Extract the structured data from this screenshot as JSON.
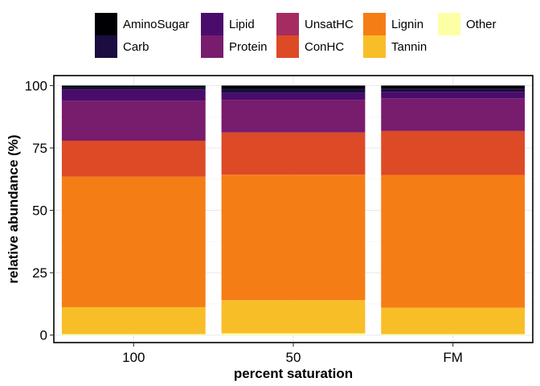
{
  "chart_data": {
    "type": "bar",
    "stacked": true,
    "xlabel": "percent saturation",
    "ylabel": "relative abundance (%)",
    "ylim": [
      -3,
      104
    ],
    "yticks": [
      0,
      25,
      50,
      75,
      100
    ],
    "categories": [
      "100",
      "50",
      "FM"
    ],
    "grid": true,
    "legend_position": "top",
    "legend_columns": 5,
    "series": [
      {
        "name": "AminoSugar",
        "color": "#000004",
        "values": [
          0.8,
          1.3,
          1.2
        ]
      },
      {
        "name": "Carb",
        "color": "#1b0c41",
        "values": [
          0.8,
          1.7,
          1.3
        ]
      },
      {
        "name": "Lipid",
        "color": "#4a0c6b",
        "values": [
          4.5,
          2.7,
          2.6
        ]
      },
      {
        "name": "Protein",
        "color": "#781c6d",
        "values": [
          16.0,
          13.1,
          13.1
        ]
      },
      {
        "name": "UnsatHC",
        "color": "#a52c60",
        "values": [
          0.0,
          0.0,
          0.0
        ]
      },
      {
        "name": "ConHC",
        "color": "#dd4a26",
        "values": [
          14.4,
          16.9,
          17.6
        ]
      },
      {
        "name": "Lignin",
        "color": "#f57d15",
        "values": [
          52.3,
          50.3,
          53.2
        ]
      },
      {
        "name": "Tannin",
        "color": "#f8be28",
        "values": [
          10.8,
          13.3,
          10.6
        ]
      },
      {
        "name": "Other",
        "color": "#fcffa4",
        "values": [
          0.4,
          0.7,
          0.4
        ]
      }
    ]
  }
}
